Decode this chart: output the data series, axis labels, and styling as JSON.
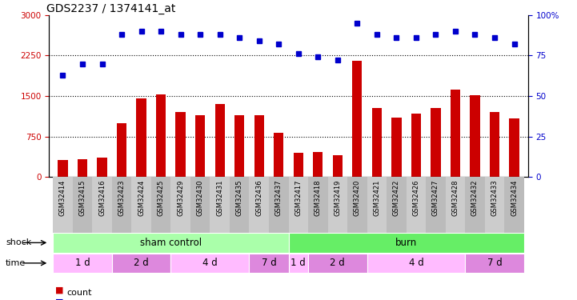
{
  "title": "GDS2237 / 1374141_at",
  "samples": [
    "GSM32414",
    "GSM32415",
    "GSM32416",
    "GSM32423",
    "GSM32424",
    "GSM32425",
    "GSM32429",
    "GSM32430",
    "GSM32431",
    "GSM32435",
    "GSM32436",
    "GSM32437",
    "GSM32417",
    "GSM32418",
    "GSM32419",
    "GSM32420",
    "GSM32421",
    "GSM32422",
    "GSM32426",
    "GSM32427",
    "GSM32428",
    "GSM32432",
    "GSM32433",
    "GSM32434"
  ],
  "counts": [
    320,
    330,
    360,
    1000,
    1450,
    1530,
    1200,
    1150,
    1350,
    1150,
    1150,
    820,
    450,
    470,
    400,
    2150,
    1280,
    1100,
    1170,
    1280,
    1620,
    1520,
    1200,
    1080
  ],
  "percentiles": [
    63,
    70,
    70,
    88,
    90,
    90,
    88,
    88,
    88,
    86,
    84,
    82,
    76,
    74,
    72,
    95,
    88,
    86,
    86,
    88,
    90,
    88,
    86,
    82
  ],
  "bar_color": "#cc0000",
  "dot_color": "#0000cc",
  "ylim_left": [
    0,
    3000
  ],
  "ylim_right": [
    0,
    100
  ],
  "yticks_left": [
    0,
    750,
    1500,
    2250,
    3000
  ],
  "yticks_right": [
    0,
    25,
    50,
    75,
    100
  ],
  "grid_values": [
    750,
    1500,
    2250
  ],
  "shock_groups": [
    {
      "label": "sham control",
      "start": 0,
      "end": 11,
      "color": "#aaffaa"
    },
    {
      "label": "burn",
      "start": 12,
      "end": 23,
      "color": "#66ee66"
    }
  ],
  "time_groups": [
    {
      "label": "1 d",
      "start": 0,
      "end": 2,
      "color": "#ffbbff"
    },
    {
      "label": "2 d",
      "start": 3,
      "end": 5,
      "color": "#dd88dd"
    },
    {
      "label": "4 d",
      "start": 6,
      "end": 9,
      "color": "#ffbbff"
    },
    {
      "label": "7 d",
      "start": 10,
      "end": 11,
      "color": "#dd88dd"
    },
    {
      "label": "1 d",
      "start": 12,
      "end": 12,
      "color": "#ffbbff"
    },
    {
      "label": "2 d",
      "start": 13,
      "end": 15,
      "color": "#dd88dd"
    },
    {
      "label": "4 d",
      "start": 16,
      "end": 20,
      "color": "#ffbbff"
    },
    {
      "label": "7 d",
      "start": 21,
      "end": 23,
      "color": "#dd88dd"
    }
  ],
  "bar_color_legend": "#cc0000",
  "dot_color_legend": "#0000cc",
  "tick_label_color_left": "#cc0000",
  "tick_label_color_right": "#0000cc",
  "title_fontsize": 10,
  "bar_width": 0.5,
  "xticklabel_bg_even": "#cccccc",
  "xticklabel_bg_odd": "#bbbbbb"
}
